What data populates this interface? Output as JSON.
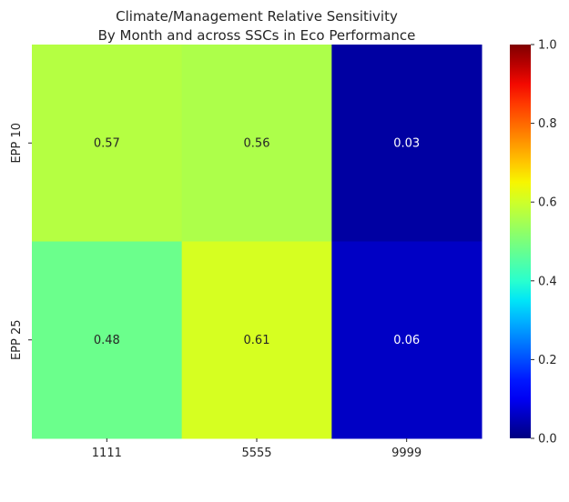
{
  "chart_data": {
    "type": "heatmap",
    "title_lines": [
      "Climate/Management Relative Sensitivity",
      "By Month and across SSCs in Eco Performance"
    ],
    "x_categories": [
      "1111",
      "5555",
      "9999"
    ],
    "y_categories": [
      "EPP 10",
      "EPP 25"
    ],
    "values": [
      [
        0.57,
        0.56,
        0.03
      ],
      [
        0.48,
        0.61,
        0.06
      ]
    ],
    "value_labels": [
      [
        "0.57",
        "0.56",
        "0.03"
      ],
      [
        "0.48",
        "0.61",
        "0.06"
      ]
    ],
    "colormap": "jet",
    "vmin": 0.0,
    "vmax": 1.0,
    "colorbar_ticks": [
      0.0,
      0.2,
      0.4,
      0.6,
      0.8,
      1.0
    ],
    "colorbar_tick_labels": [
      "0.0",
      "0.2",
      "0.4",
      "0.6",
      "0.8",
      "1.0"
    ],
    "xlabel": "",
    "ylabel": "",
    "grid": false
  }
}
